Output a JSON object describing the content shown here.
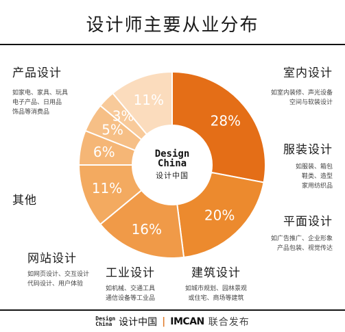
{
  "title": "设计师主要从业分布",
  "chart_data": {
    "type": "pie",
    "series": [
      {
        "category": "产品设计",
        "value": 28,
        "label": "28%",
        "color": "#e46e17",
        "desc": [
          "如家电、家具、玩具",
          "电子产品、日用品",
          "饰品等消费品"
        ]
      },
      {
        "category": "室内设计",
        "value": 20,
        "label": "20%",
        "color": "#ec8a2e",
        "desc": [
          "如室内装修、声光设备",
          "空间与软装设计"
        ]
      },
      {
        "category": "服装设计",
        "value": 16,
        "label": "16%",
        "color": "#f09a48",
        "desc": [
          "如服装、箱包",
          "鞋类、造型",
          "家用纺织品"
        ]
      },
      {
        "category": "平面设计",
        "value": 11,
        "label": "11%",
        "color": "#f3aa60",
        "desc": [
          "如广告推广、企业形象",
          "产品包装、视觉传达"
        ]
      },
      {
        "category": "建筑设计",
        "value": 6,
        "label": "6%",
        "color": "#f5b676",
        "desc": [
          "如城市规划、园林景观",
          "或住宅、商场等建筑"
        ]
      },
      {
        "category": "工业设计",
        "value": 5,
        "label": "5%",
        "color": "#f6bf86",
        "desc": [
          "如机械、交通工具",
          "通信设备等工业品"
        ]
      },
      {
        "category": "网站设计",
        "value": 3,
        "label": "3%",
        "color": "#f8ca9a",
        "desc": [
          "如网页设计、交互设计",
          "代码设计、用户体验"
        ]
      },
      {
        "category": "其他",
        "value": 11,
        "label": "11%",
        "color": "#fbdcbd",
        "desc": []
      }
    ]
  },
  "center": {
    "line1": "Design",
    "line2": "China",
    "line3": "设计中国"
  },
  "footer": {
    "logo_line1": "Design",
    "logo_line2": "China",
    "brand": "设计中国",
    "separator": "|",
    "partner": "IMCAN",
    "published": "联合发布"
  }
}
